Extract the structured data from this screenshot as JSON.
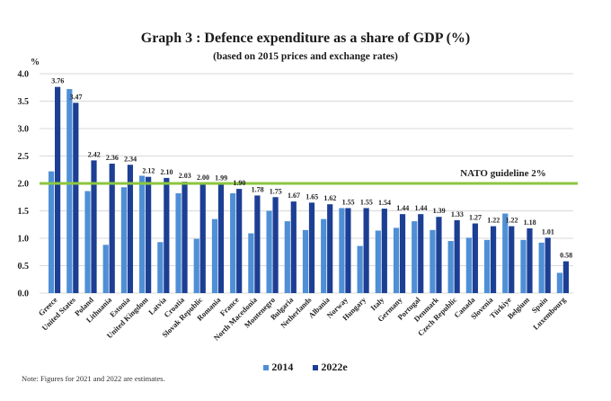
{
  "chart_data": {
    "type": "bar",
    "title": "Graph 3 : Defence expenditure as a share of GDP (%)",
    "subtitle": "(based on 2015 prices and exchange rates)",
    "ylabel": "%",
    "xlabel": "",
    "ylim": [
      0,
      4.0
    ],
    "yticks": [
      "0.0",
      "0.5",
      "1.0",
      "1.5",
      "2.0",
      "2.5",
      "3.0",
      "3.5",
      "4.0"
    ],
    "grid": true,
    "legend_position": "bottom-center",
    "categories": [
      "Greece",
      "United States",
      "Poland",
      "Lithuania",
      "Estonia",
      "United Kingdom",
      "Latvia",
      "Croatia",
      "Slovak Republic",
      "Romania",
      "France",
      "North Macedonia",
      "Montenegro",
      "Bulgaria",
      "Netherlands",
      "Albania",
      "Norway",
      "Hungary",
      "Italy",
      "Germany",
      "Portugal",
      "Denmark",
      "Czech Republic",
      "Canada",
      "Slovenia",
      "Türkiye",
      "Belgium",
      "Spain",
      "Luxembourg"
    ],
    "series": [
      {
        "name": "2014",
        "color": "#4f8fd6",
        "values": [
          2.22,
          3.72,
          1.86,
          0.88,
          1.93,
          2.14,
          0.93,
          1.82,
          0.99,
          1.35,
          1.82,
          1.09,
          1.5,
          1.31,
          1.15,
          1.35,
          1.55,
          0.86,
          1.14,
          1.19,
          1.31,
          1.15,
          0.95,
          1.01,
          0.97,
          1.45,
          0.97,
          0.92,
          0.37
        ]
      },
      {
        "name": "2022e",
        "color": "#1c3f94",
        "values": [
          3.76,
          3.47,
          2.42,
          2.36,
          2.34,
          2.12,
          2.1,
          2.03,
          2.0,
          1.99,
          1.9,
          1.78,
          1.75,
          1.67,
          1.65,
          1.62,
          1.55,
          1.55,
          1.54,
          1.44,
          1.44,
          1.39,
          1.33,
          1.27,
          1.22,
          1.22,
          1.18,
          1.01,
          0.58
        ],
        "data_labels": [
          "3.76",
          "3.47",
          "2.42",
          "2.36",
          "2.34",
          "2.12",
          "2.10",
          "2.03",
          "2.00",
          "1.99",
          "1.90",
          "1.78",
          "1.75",
          "1.67",
          "1.65",
          "1.62",
          "1.55",
          "1.55",
          "1.54",
          "1.44",
          "1.44",
          "1.39",
          "1.33",
          "1.27",
          "1.22",
          "1.22",
          "1.18",
          "1.01",
          "0.58"
        ]
      }
    ],
    "reference_line": {
      "value": 2.0,
      "label": "NATO guideline 2%",
      "color": "#8cc63f"
    },
    "gridline_color": "#d9d9d9"
  },
  "note": "Note: Figures for 2021 and 2022 are estimates."
}
